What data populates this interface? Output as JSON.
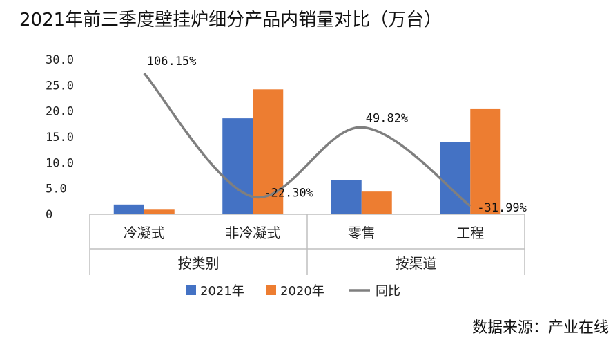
{
  "chart_data": {
    "type": "bar",
    "title": "2021年前三季度壁挂炉细分产品内销量对比（万台）",
    "categories": [
      "冷凝式",
      "非冷凝式",
      "零售",
      "工程"
    ],
    "groups": [
      {
        "label": "按类别",
        "categories": [
          "冷凝式",
          "非冷凝式"
        ]
      },
      {
        "label": "按渠道",
        "categories": [
          "零售",
          "工程"
        ]
      }
    ],
    "series": [
      {
        "name": "2021年",
        "type": "bar",
        "color": "#4472C4",
        "values": [
          1.9,
          18.6,
          6.6,
          14.0
        ]
      },
      {
        "name": "2020年",
        "type": "bar",
        "color": "#ED7D31",
        "values": [
          0.9,
          24.2,
          4.4,
          20.5
        ]
      },
      {
        "name": "同比",
        "type": "line",
        "color": "#7F7F7F",
        "values": [
          106.15,
          -22.3,
          49.82,
          -31.99
        ],
        "labels": [
          "106.15%",
          "-22.30%",
          "49.82%",
          "-31.99%"
        ]
      }
    ],
    "ylim": [
      0,
      30
    ],
    "yticks": [
      "30.0",
      "25.0",
      "20.0",
      "15.0",
      "10.0",
      "5.0",
      "0"
    ],
    "legend_position": "bottom",
    "grid": false
  },
  "source": "数据来源：产业在线"
}
